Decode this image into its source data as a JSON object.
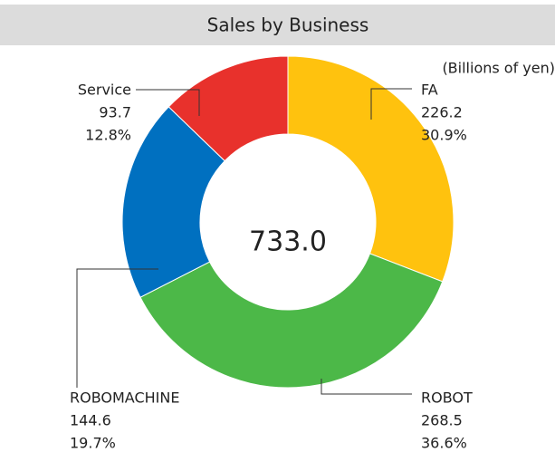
{
  "chart_data": {
    "type": "donut",
    "title": "Sales by Business",
    "unit_note": "(Billions of yen)",
    "categories": [
      "FA",
      "ROBOT",
      "ROBOMACHINE",
      "Service"
    ],
    "values": [
      226.2,
      268.5,
      144.6,
      93.7
    ],
    "shares": [
      30.9,
      36.6,
      19.7,
      12.8
    ],
    "share_labels": [
      "30.9%",
      "36.6%",
      "19.7%",
      "12.8%"
    ],
    "colors": [
      "#ffc20e",
      "#4cb848",
      "#0070c0",
      "#e8312c"
    ],
    "total": {
      "value": 733,
      "label": "733.0"
    }
  }
}
